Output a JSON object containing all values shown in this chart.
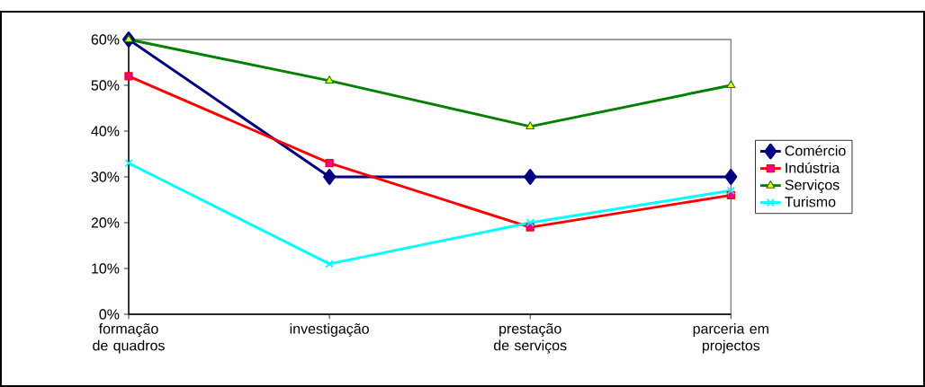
{
  "chart_data": {
    "type": "line",
    "categories": [
      "formação de quadros",
      "investigação",
      "prestação de serviços",
      "parceria em projectos"
    ],
    "ylim": [
      0,
      60
    ],
    "yticks": [
      {
        "value": 0,
        "label": "0%"
      },
      {
        "value": 10,
        "label": "10%"
      },
      {
        "value": 20,
        "label": "20%"
      },
      {
        "value": 30,
        "label": "30%"
      },
      {
        "value": 40,
        "label": "40%"
      },
      {
        "value": 50,
        "label": "50%"
      },
      {
        "value": 60,
        "label": "60%"
      }
    ],
    "legend": "right",
    "grid": false,
    "line_style": "solid",
    "series": [
      {
        "name": "Comércio",
        "color": "#000080",
        "marker": "diamond",
        "values": [
          60,
          30,
          30,
          30
        ]
      },
      {
        "name": "Indústria",
        "color": "#ff0000",
        "marker": "square",
        "values": [
          52,
          33,
          19,
          26
        ]
      },
      {
        "name": "Serviços",
        "color": "#008000",
        "marker": "triangle",
        "values": [
          60,
          51,
          41,
          50
        ]
      },
      {
        "name": "Turismo",
        "color": "#00ffff",
        "marker": "cross",
        "values": [
          33,
          11,
          20,
          27
        ]
      }
    ]
  }
}
